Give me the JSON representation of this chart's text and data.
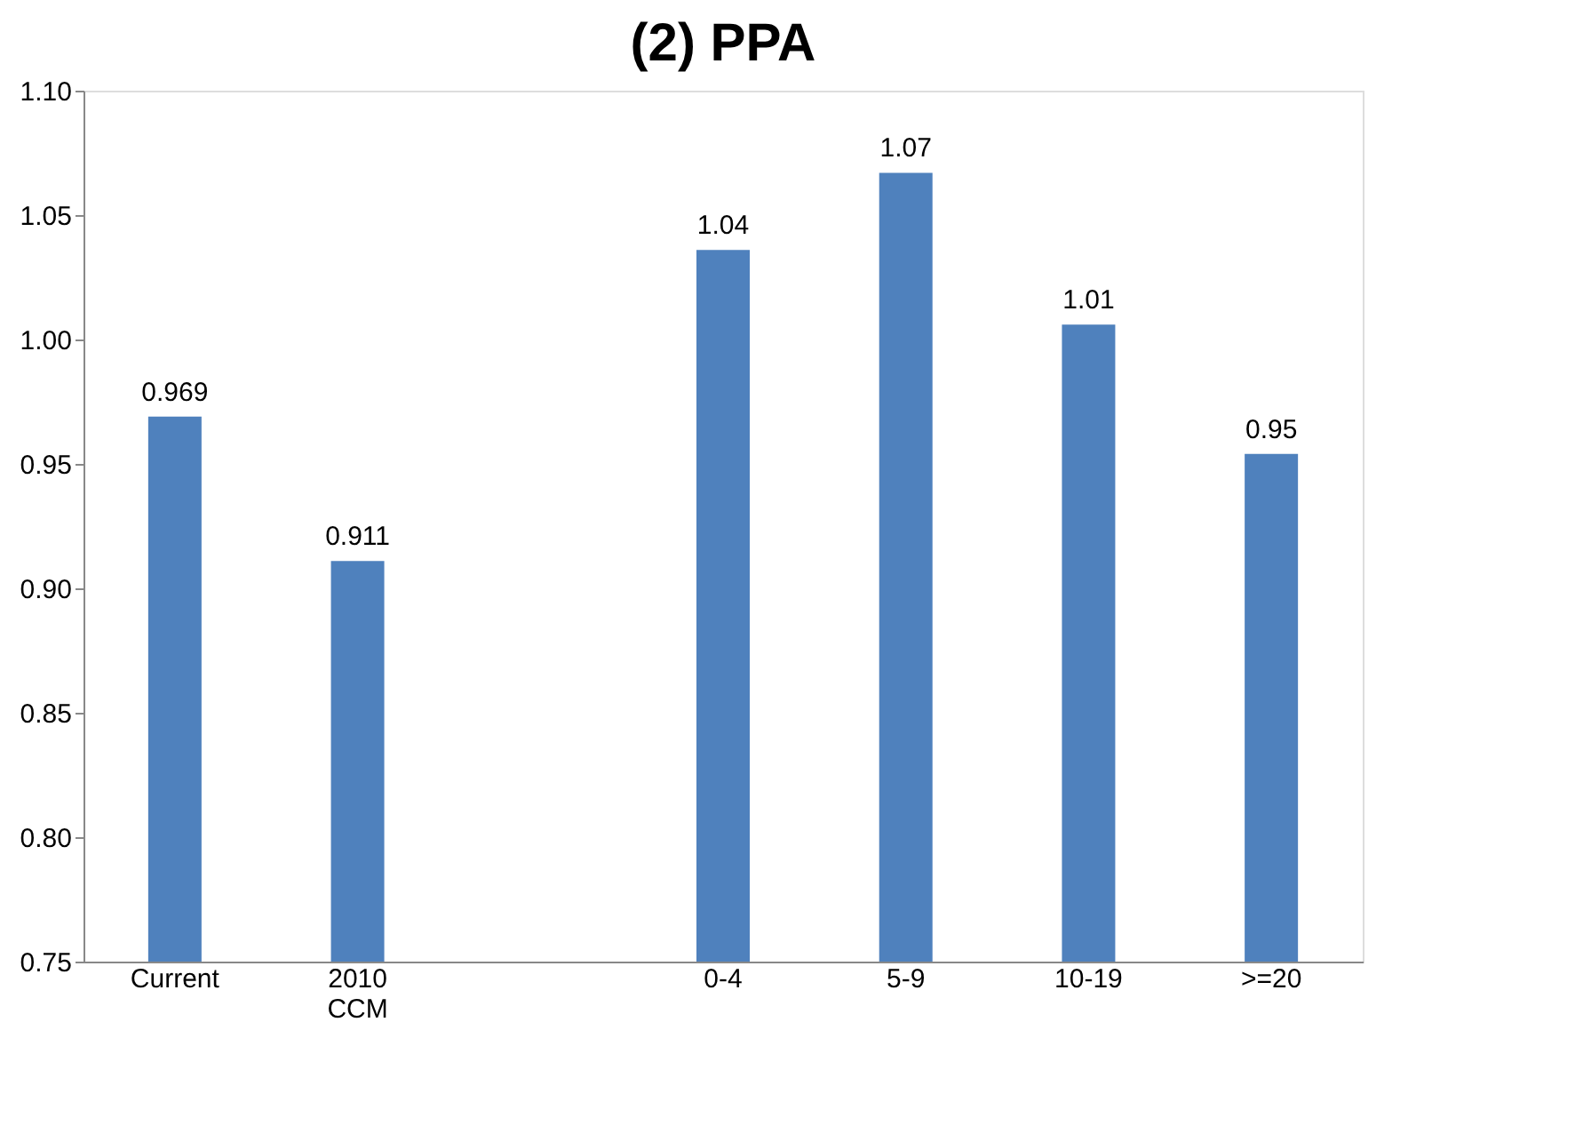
{
  "chart_data": {
    "type": "bar",
    "title": "(2) PPA",
    "categories": [
      "Current",
      "2010 CCM",
      null,
      "0-4",
      "5-9",
      "10-19",
      ">=20"
    ],
    "values": [
      0.969,
      0.911,
      null,
      1.036,
      1.067,
      1.006,
      0.954
    ],
    "value_labels": [
      "0.969",
      "0.911",
      null,
      "1.04",
      "1.07",
      "1.01",
      "0.95"
    ],
    "color": "#4f81bd",
    "ylim": [
      0.75,
      1.1
    ],
    "yticks": [
      {
        "value": 0.75,
        "label": "0.75"
      },
      {
        "value": 0.8,
        "label": "0.80"
      },
      {
        "value": 0.85,
        "label": "0.85"
      },
      {
        "value": 0.9,
        "label": "0.90"
      },
      {
        "value": 0.95,
        "label": "0.95"
      },
      {
        "value": 1.0,
        "label": "1.00"
      },
      {
        "value": 1.05,
        "label": "1.05"
      },
      {
        "value": 1.1,
        "label": "1.10"
      }
    ],
    "grid": false
  }
}
